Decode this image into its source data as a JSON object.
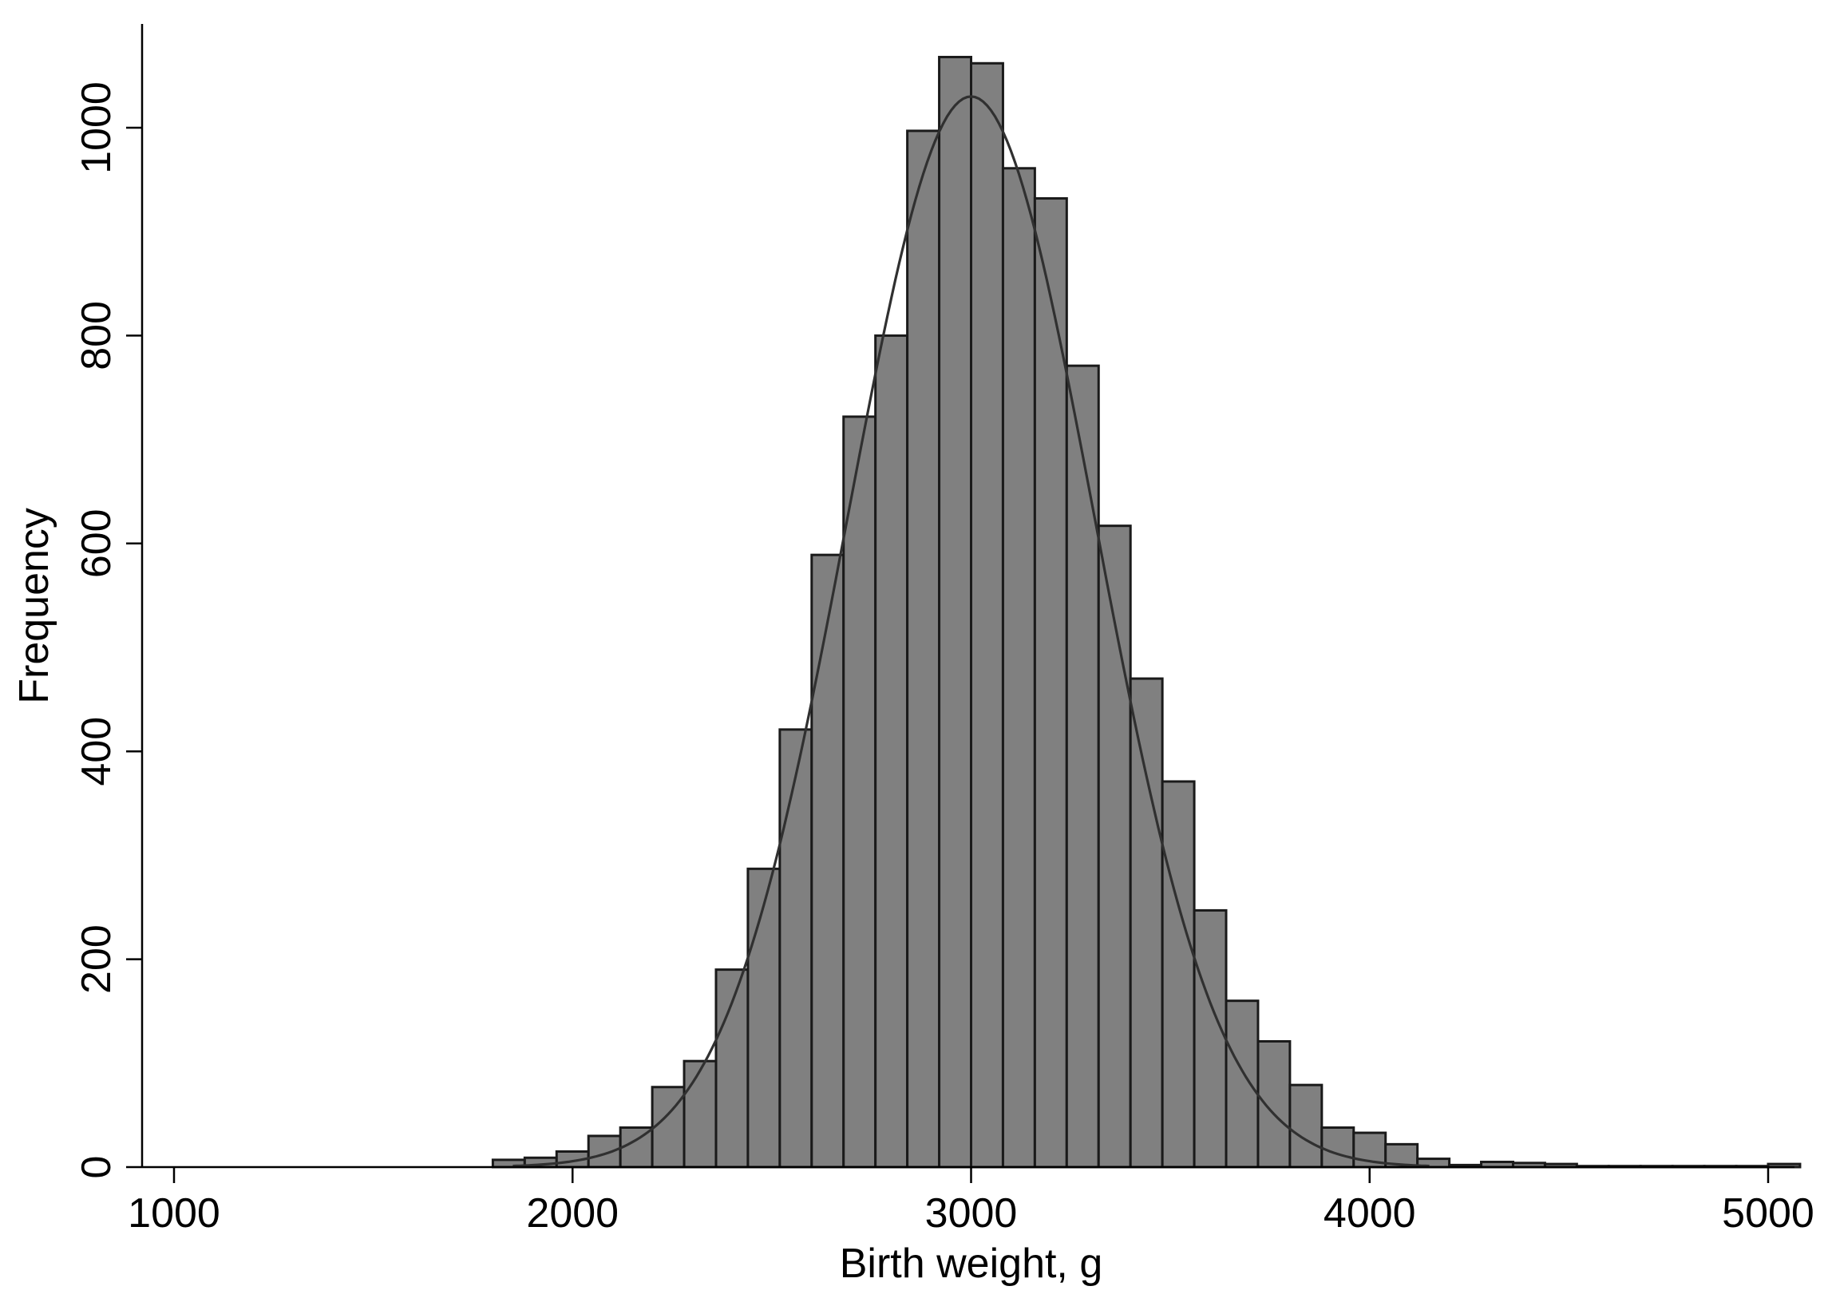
{
  "chart_data": {
    "type": "bar",
    "subtype": "histogram",
    "xlabel": "Birth weight, g",
    "ylabel": "Frequency",
    "xlim": [
      1000,
      5000
    ],
    "ylim": [
      0,
      1080
    ],
    "x_ticks": [
      1000,
      2000,
      3000,
      4000,
      5000
    ],
    "y_ticks": [
      0,
      200,
      400,
      600,
      800,
      1000
    ],
    "grid": false,
    "bin_width": 80,
    "bin_start": 1800,
    "values": [
      7,
      9,
      15,
      30,
      38,
      77,
      102,
      190,
      287,
      421,
      589,
      722,
      800,
      997,
      1068,
      1062,
      961,
      932,
      771,
      617,
      470,
      371,
      247,
      160,
      121,
      79,
      38,
      33,
      22,
      8,
      2,
      5,
      4,
      3,
      1,
      1,
      1,
      1,
      1,
      1,
      3
    ],
    "normal_curve": {
      "mean": 3000,
      "sd": 310,
      "peak": 1030
    },
    "colors": {
      "bar_fill": "#808080",
      "bar_edge": "#1a1a1a",
      "curve": "#303030"
    }
  }
}
